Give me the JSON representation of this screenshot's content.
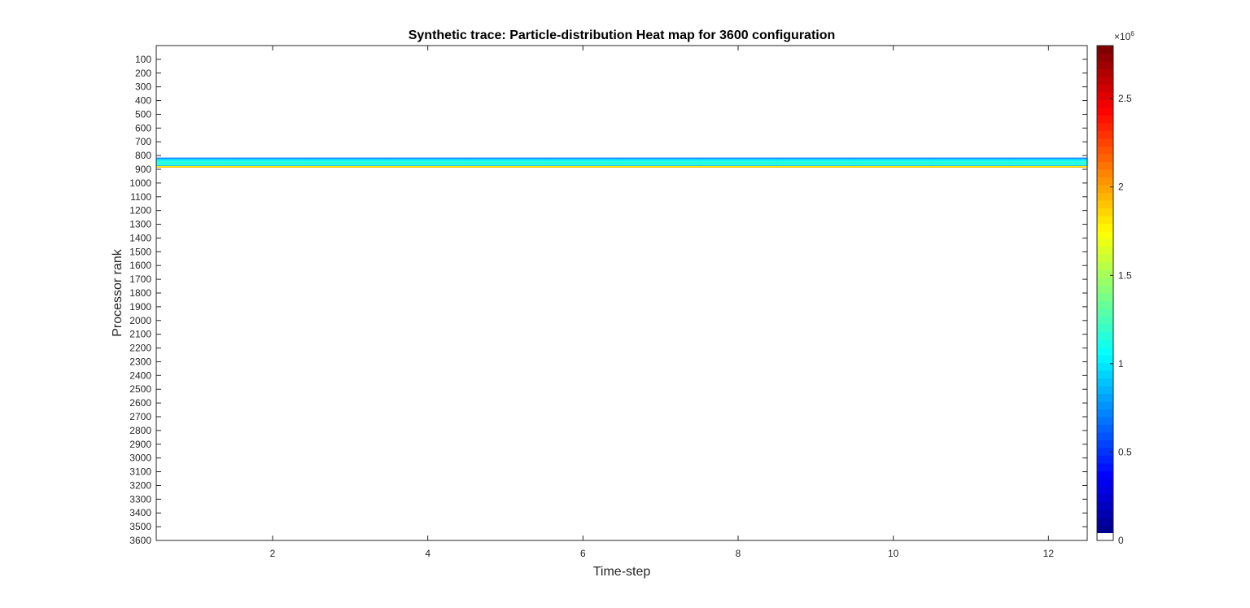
{
  "chart_data": {
    "type": "heatmap",
    "title": "Synthetic trace: Particle-distribution Heat map for 3600 configuration",
    "xlabel": "Time-step",
    "ylabel": "Processor rank",
    "xlim": [
      0.5,
      12.5
    ],
    "ylim": [
      0,
      3600
    ],
    "y_reversed": true,
    "x_ticks": [
      2,
      4,
      6,
      8,
      10,
      12
    ],
    "y_ticks": [
      100,
      200,
      300,
      400,
      500,
      600,
      700,
      800,
      900,
      1000,
      1100,
      1200,
      1300,
      1400,
      1500,
      1600,
      1700,
      1800,
      1900,
      2000,
      2100,
      2200,
      2300,
      2400,
      2500,
      2600,
      2700,
      2800,
      2900,
      3000,
      3100,
      3200,
      3300,
      3400,
      3500,
      3600
    ],
    "time_steps": [
      1,
      2,
      3,
      4,
      5,
      6,
      7,
      8,
      9,
      10,
      11,
      12
    ],
    "rows": [
      {
        "ranks": [
          815,
          822
        ],
        "value": 650000
      },
      {
        "ranks": [
          822,
          830
        ],
        "value": 900000
      },
      {
        "ranks": [
          830,
          838
        ],
        "value": 1000000
      },
      {
        "ranks": [
          838,
          846
        ],
        "value": 1100000
      },
      {
        "ranks": [
          846,
          855
        ],
        "value": 1200000
      },
      {
        "ranks": [
          855,
          865
        ],
        "value": 1050000
      },
      {
        "ranks": [
          865,
          871
        ],
        "value": 1250000
      },
      {
        "ranks": [
          871,
          876
        ],
        "value": 850000
      },
      {
        "ranks": [
          876,
          882
        ],
        "value": 1800000
      },
      {
        "ranks": [
          882,
          888
        ],
        "value": 1950000
      }
    ],
    "background_value": 0,
    "colorbar": {
      "colormap": "jet",
      "clim": [
        0,
        2800000
      ],
      "ticks": [
        0,
        0.5,
        1,
        1.5,
        2,
        2.5
      ],
      "exponent_label": "×10",
      "exponent": "6",
      "zero_color": "#ffffff"
    },
    "grid": false
  }
}
